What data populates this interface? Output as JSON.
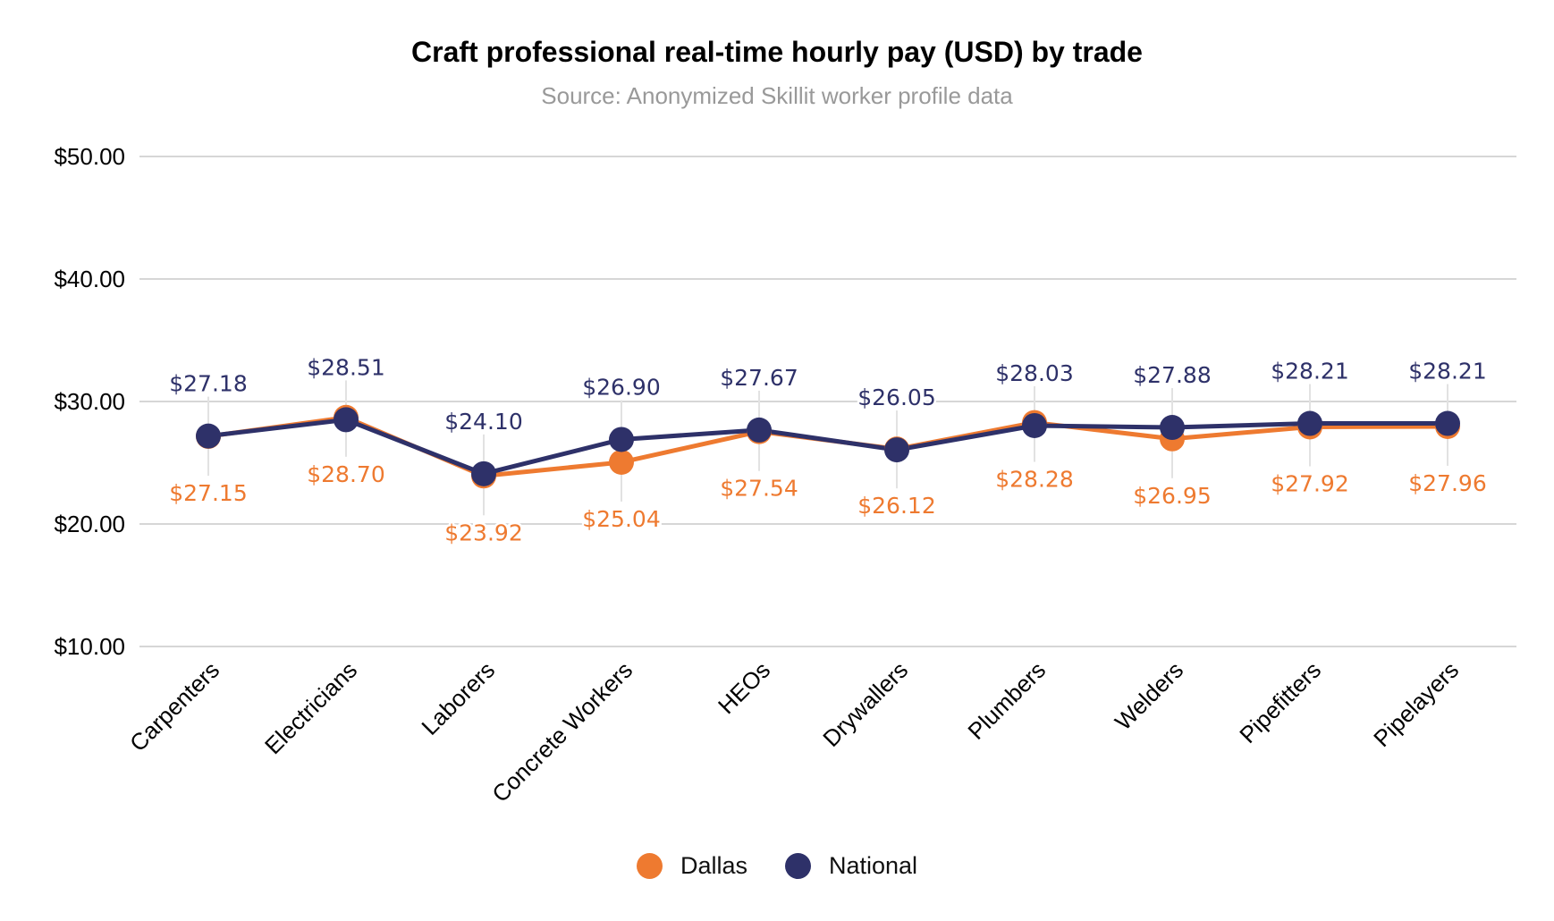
{
  "chart_data": {
    "type": "line",
    "title": "Craft professional real-time hourly pay (USD) by trade",
    "subtitle": "Source: Anonymized Skillit worker profile data",
    "xlabel": "",
    "ylabel": "",
    "categories": [
      "Carpenters",
      "Electricians",
      "Laborers",
      "Concrete Workers",
      "HEOs",
      "Drywallers",
      "Plumbers",
      "Welders",
      "Pipefitters",
      "Pipelayers"
    ],
    "series": [
      {
        "name": "Dallas",
        "color": "#EE7A30",
        "label_position": "below",
        "values": [
          27.15,
          28.7,
          23.92,
          25.04,
          27.54,
          26.12,
          28.28,
          26.95,
          27.92,
          27.96
        ]
      },
      {
        "name": "National",
        "color": "#2E3169",
        "label_position": "above",
        "values": [
          27.18,
          28.51,
          24.1,
          26.9,
          27.67,
          26.05,
          28.03,
          27.88,
          28.21,
          28.21
        ]
      }
    ],
    "ylim": [
      10,
      50
    ],
    "yticks": [
      10,
      20,
      30,
      40,
      50
    ],
    "ytick_labels": [
      "$10.00",
      "$20.00",
      "$30.00",
      "$40.00",
      "$50.00"
    ],
    "value_format": "$0.00",
    "grid": {
      "horizontal": true,
      "vertical": false,
      "color": "#D6D6D6"
    },
    "legend": {
      "position": "bottom",
      "entries": [
        "Dallas",
        "National"
      ]
    }
  }
}
